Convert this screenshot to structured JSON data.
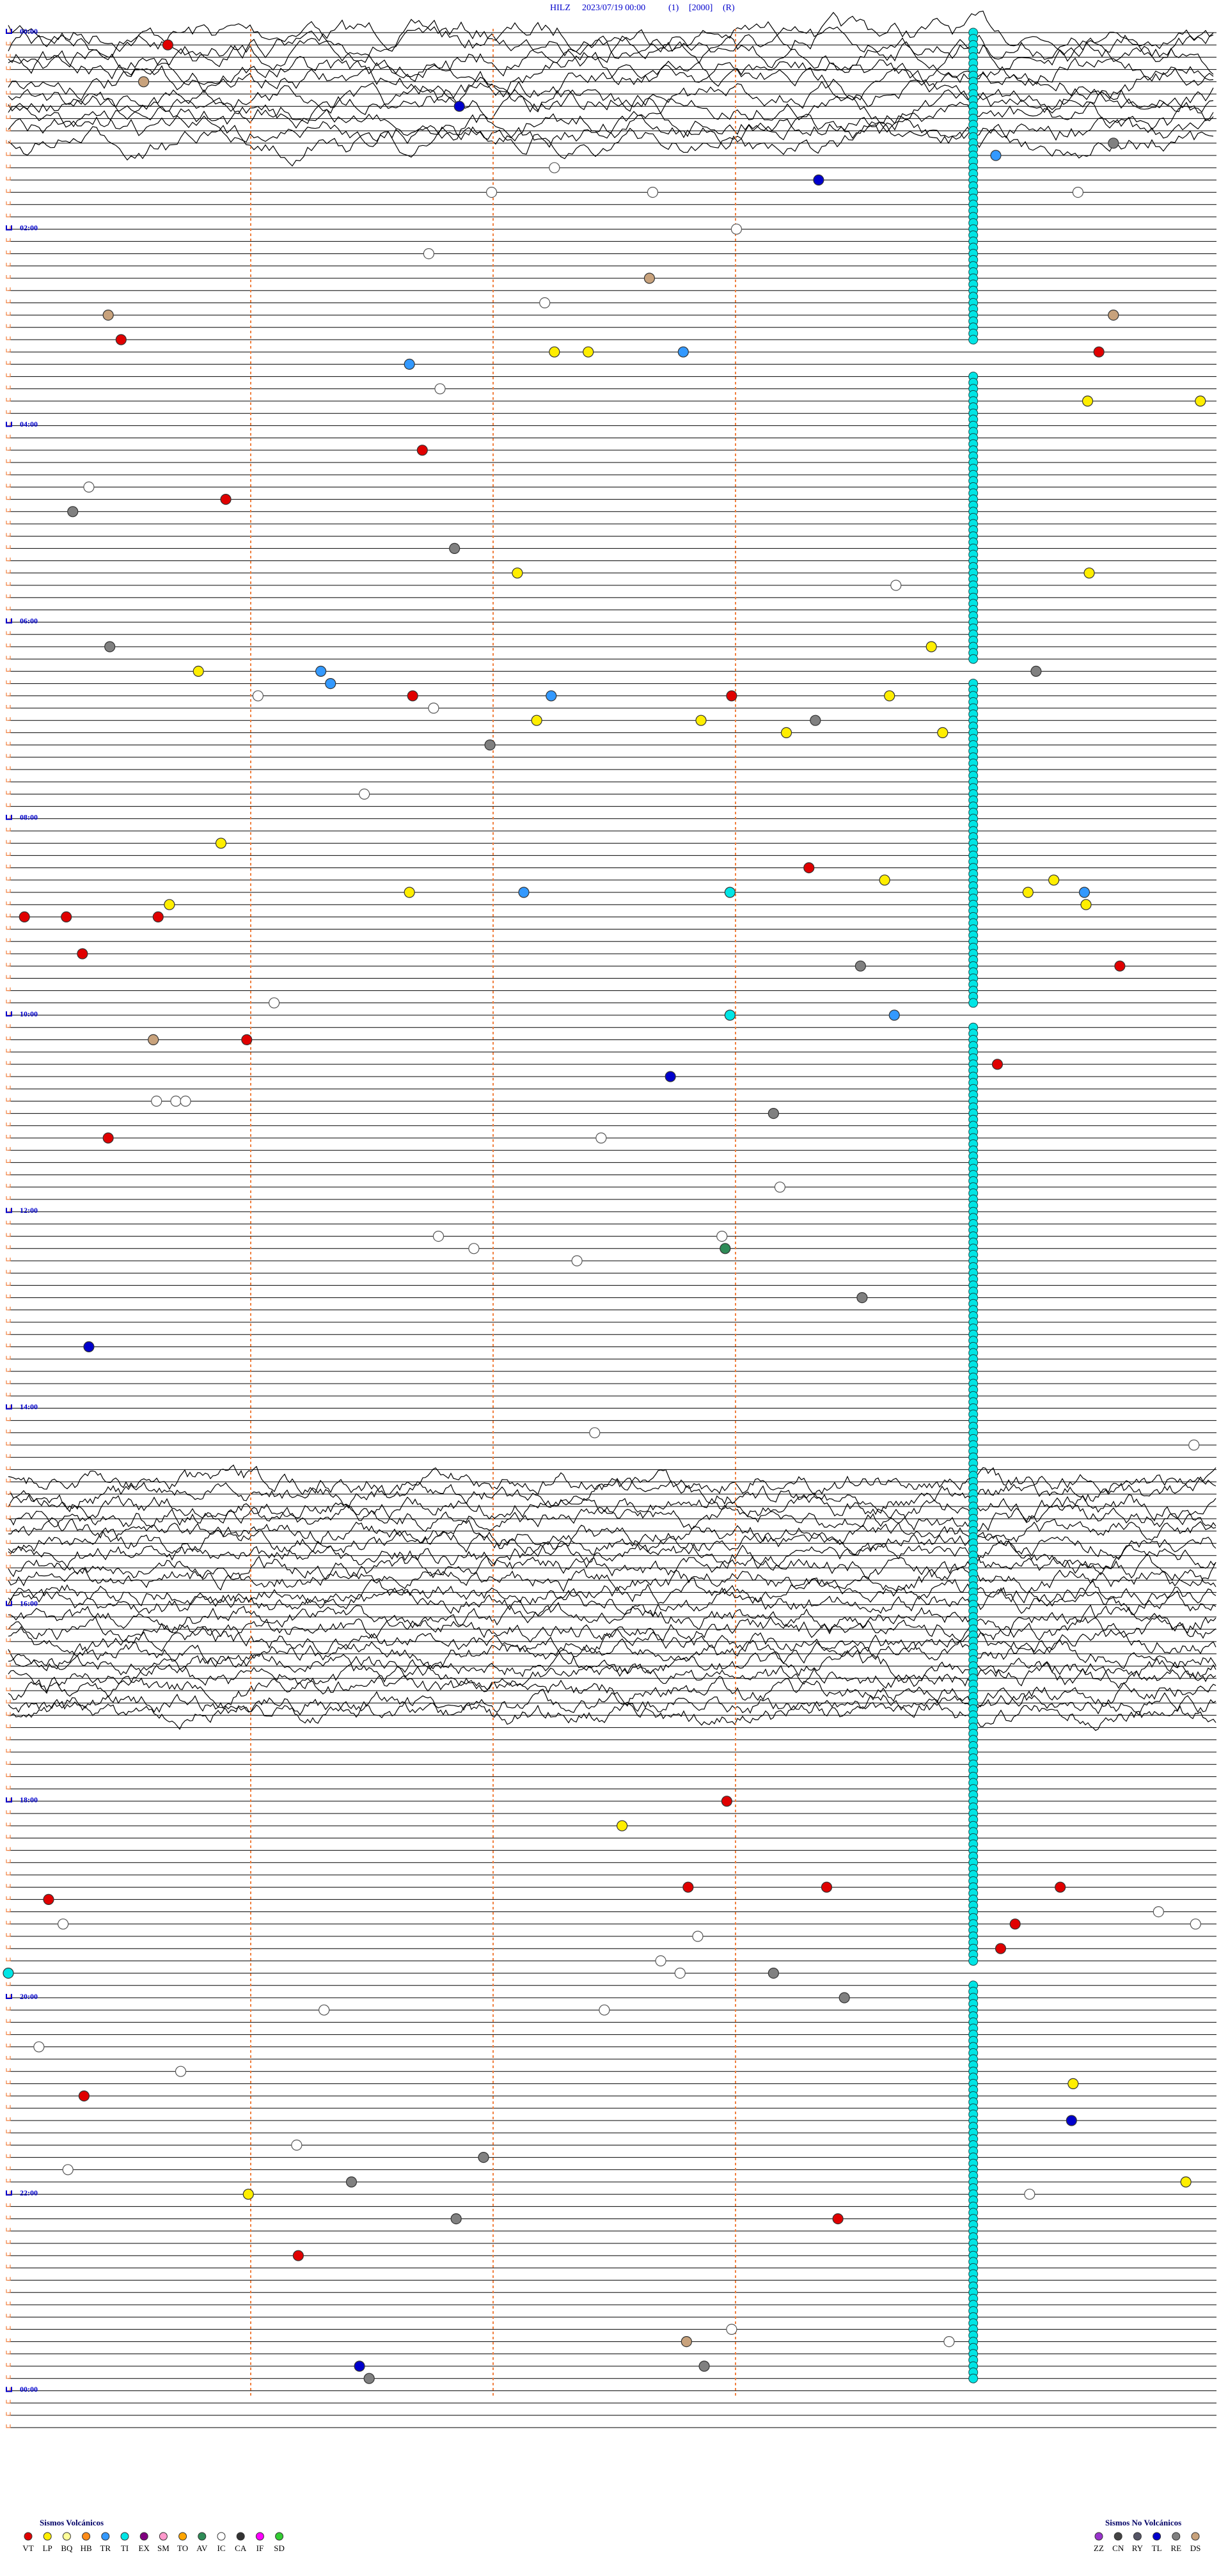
{
  "chart_data": {
    "type": "helicorder",
    "title_parts": [
      "HILZ",
      "2023/07/19 00:00",
      "(1)",
      "[2000]",
      "(R)"
    ],
    "xlim": [
      0,
      7.5
    ],
    "ylim": [
      0,
      195
    ],
    "yticks": [
      {
        "value": 0,
        "label": "00:00"
      },
      {
        "value": 16,
        "label": "02:00"
      },
      {
        "value": 32,
        "label": "04:00"
      },
      {
        "value": 48,
        "label": "06:00"
      },
      {
        "value": 64,
        "label": "08:00"
      },
      {
        "value": 80,
        "label": "10:00"
      },
      {
        "value": 96,
        "label": "12:00"
      },
      {
        "value": 112,
        "label": "14:00"
      },
      {
        "value": 128,
        "label": "16:00"
      },
      {
        "value": 144,
        "label": "18:00"
      },
      {
        "value": 160,
        "label": "20:00"
      },
      {
        "value": 176,
        "label": "22:00"
      },
      {
        "value": 192,
        "label": "00:00"
      }
    ],
    "events": [
      [
        1,
        0.99,
        "VT"
      ],
      [
        4,
        0.84,
        "DS"
      ],
      [
        6,
        2.8,
        "TL"
      ],
      [
        9,
        6.86,
        "RE"
      ],
      [
        10,
        6.13,
        "TR"
      ],
      [
        11,
        3.39,
        "IC"
      ],
      [
        13,
        3.0,
        "IC"
      ],
      [
        13,
        4.0,
        "IC"
      ],
      [
        12,
        5.03,
        "TL"
      ],
      [
        13,
        6.64,
        "IC"
      ],
      [
        16,
        4.52,
        "IC"
      ],
      [
        18,
        2.61,
        "IC"
      ],
      [
        22,
        3.33,
        "IC"
      ],
      [
        20,
        3.98,
        "DS"
      ],
      [
        23,
        0.62,
        "DS"
      ],
      [
        23,
        6.86,
        "DS"
      ],
      [
        25,
        0.7,
        "VT"
      ],
      [
        26,
        6.77,
        "VT"
      ],
      [
        27,
        2.49,
        "TR"
      ],
      [
        26,
        3.39,
        "LP"
      ],
      [
        26,
        3.6,
        "LP"
      ],
      [
        26,
        4.19,
        "TR"
      ],
      [
        29,
        2.68,
        "IC"
      ],
      [
        30,
        6.7,
        "LP"
      ],
      [
        30,
        7.4,
        "LP"
      ],
      [
        34,
        2.57,
        "VT"
      ],
      [
        37,
        0.5,
        "IC"
      ],
      [
        38,
        1.35,
        "VT"
      ],
      [
        39,
        0.4,
        "RE"
      ],
      [
        42,
        2.77,
        "RE"
      ],
      [
        44,
        3.16,
        "LP"
      ],
      [
        45,
        5.51,
        "IC"
      ],
      [
        44,
        6.71,
        "LP"
      ],
      [
        50,
        0.63,
        "RE"
      ],
      [
        50,
        5.73,
        "LP"
      ],
      [
        52,
        6.38,
        "RE"
      ],
      [
        52,
        1.18,
        "LP"
      ],
      [
        52,
        1.94,
        "TR"
      ],
      [
        53,
        2.0,
        "TR"
      ],
      [
        54,
        1.55,
        "IC"
      ],
      [
        54,
        2.51,
        "VT"
      ],
      [
        54,
        3.37,
        "TR"
      ],
      [
        54,
        4.49,
        "VT"
      ],
      [
        55,
        2.64,
        "IC"
      ],
      [
        56,
        3.28,
        "LP"
      ],
      [
        56,
        4.3,
        "LP"
      ],
      [
        56,
        5.01,
        "RE"
      ],
      [
        54,
        5.47,
        "LP"
      ],
      [
        57,
        4.83,
        "LP"
      ],
      [
        57,
        5.8,
        "LP"
      ],
      [
        58,
        2.99,
        "RE"
      ],
      [
        62,
        2.21,
        "IC"
      ],
      [
        66,
        1.32,
        "LP"
      ],
      [
        68,
        4.97,
        "VT"
      ],
      [
        69,
        5.44,
        "LP"
      ],
      [
        70,
        6.33,
        "LP"
      ],
      [
        69,
        6.49,
        "LP"
      ],
      [
        70,
        6.68,
        "TR"
      ],
      [
        70,
        4.48,
        "TI"
      ],
      [
        70,
        2.49,
        "LP"
      ],
      [
        70,
        3.2,
        "TR"
      ],
      [
        72,
        0.1,
        "VT"
      ],
      [
        72,
        0.36,
        "VT"
      ],
      [
        72,
        0.93,
        "VT"
      ],
      [
        71,
        1.0,
        "LP"
      ],
      [
        71,
        6.69,
        "LP"
      ],
      [
        75,
        0.46,
        "VT"
      ],
      [
        76,
        5.29,
        "RE"
      ],
      [
        76,
        6.9,
        "VT"
      ],
      [
        79,
        1.65,
        "IC"
      ],
      [
        80,
        4.48,
        "TI"
      ],
      [
        80,
        5.5,
        "TR"
      ],
      [
        82,
        1.48,
        "VT"
      ],
      [
        82,
        0.9,
        "DS"
      ],
      [
        84,
        6.14,
        "VT"
      ],
      [
        85,
        4.11,
        "TL"
      ],
      [
        87,
        0.92,
        "IC"
      ],
      [
        87,
        1.04,
        "IC"
      ],
      [
        87,
        1.1,
        "IC"
      ],
      [
        88,
        4.75,
        "RE"
      ],
      [
        90,
        0.62,
        "VT"
      ],
      [
        90,
        3.68,
        "IC"
      ],
      [
        94,
        4.79,
        "IC"
      ],
      [
        98,
        2.67,
        "IC"
      ],
      [
        98,
        4.43,
        "IC"
      ],
      [
        99,
        2.89,
        "IC"
      ],
      [
        99,
        4.45,
        "AV"
      ],
      [
        100,
        3.53,
        "IC"
      ],
      [
        103,
        5.3,
        "RE"
      ],
      [
        107,
        0.5,
        "TL"
      ],
      [
        114,
        3.64,
        "IC"
      ],
      [
        115,
        7.36,
        "IC"
      ],
      [
        146,
        3.81,
        "LP"
      ],
      [
        144,
        4.46,
        "VT"
      ],
      [
        152,
        0.25,
        "VT"
      ],
      [
        151,
        4.22,
        "VT"
      ],
      [
        151,
        5.08,
        "VT"
      ],
      [
        151,
        6.53,
        "VT"
      ],
      [
        154,
        0.34,
        "IC"
      ],
      [
        153,
        7.14,
        "IC"
      ],
      [
        154,
        7.37,
        "IC"
      ],
      [
        154,
        6.25,
        "VT"
      ],
      [
        155,
        4.28,
        "IC"
      ],
      [
        156,
        6.16,
        "VT"
      ],
      [
        157,
        4.05,
        "IC"
      ],
      [
        158,
        4.75,
        "RE"
      ],
      [
        158,
        4.17,
        "IC"
      ],
      [
        158,
        0,
        "TI"
      ],
      [
        160,
        5.19,
        "RE"
      ],
      [
        161,
        1.96,
        "IC"
      ],
      [
        161,
        3.7,
        "IC"
      ],
      [
        164,
        0.19,
        "IC"
      ],
      [
        166,
        1.07,
        "IC"
      ],
      [
        167,
        6.61,
        "LP"
      ],
      [
        168,
        0.47,
        "VT"
      ],
      [
        170,
        6.6,
        "TL"
      ],
      [
        172,
        1.79,
        "IC"
      ],
      [
        173,
        2.95,
        "RE"
      ],
      [
        174,
        0.37,
        "IC"
      ],
      [
        175,
        2.13,
        "RE"
      ],
      [
        176,
        1.49,
        "LP"
      ],
      [
        176,
        6.34,
        "IC"
      ],
      [
        175,
        7.31,
        "LP"
      ],
      [
        178,
        2.78,
        "RE"
      ],
      [
        178,
        5.15,
        "VT"
      ],
      [
        181,
        1.8,
        "VT"
      ],
      [
        188,
        4.21,
        "DS"
      ],
      [
        187,
        4.49,
        "IC"
      ],
      [
        188,
        5.84,
        "IC"
      ],
      [
        190,
        4.32,
        "RE"
      ],
      [
        190,
        2.18,
        "TL"
      ],
      [
        191,
        2.24,
        "RE"
      ]
    ],
    "ti_track": {
      "code": "TI",
      "minute": 5.99,
      "segments": [
        [
          0,
          25
        ],
        [
          28,
          51
        ],
        [
          53,
          79
        ],
        [
          81,
          157
        ],
        [
          159,
          191
        ]
      ]
    },
    "legend_volcanic": {
      "title": "Sismos Volcánicos",
      "items": [
        {
          "code": "VT",
          "color": "#e00000"
        },
        {
          "code": "LP",
          "color": "#ffee00"
        },
        {
          "code": "BQ",
          "color": "#ffff99"
        },
        {
          "code": "HB",
          "color": "#ff8c1a"
        },
        {
          "code": "TR",
          "color": "#3399ff"
        },
        {
          "code": "TI",
          "color": "#00e5e5"
        },
        {
          "code": "EX",
          "color": "#800080"
        },
        {
          "code": "SM",
          "color": "#ff99cc"
        },
        {
          "code": "TO",
          "color": "#ffa500"
        },
        {
          "code": "AV",
          "color": "#2e8b57"
        },
        {
          "code": "IC",
          "color": "#ffffff"
        },
        {
          "code": "CA",
          "color": "#333333"
        },
        {
          "code": "IF",
          "color": "#ff00ff"
        },
        {
          "code": "SD",
          "color": "#33cc33"
        }
      ]
    },
    "legend_non_volcanic": {
      "title": "Sismos No Volcánicos",
      "items": [
        {
          "code": "ZZ",
          "color": "#9933cc"
        },
        {
          "code": "CN",
          "color": "#444444"
        },
        {
          "code": "RY",
          "color": "#555566"
        },
        {
          "code": "TL",
          "color": "#0000cc"
        },
        {
          "code": "RE",
          "color": "#808080"
        },
        {
          "code": "DS",
          "color": "#c8a27c"
        }
      ]
    }
  }
}
